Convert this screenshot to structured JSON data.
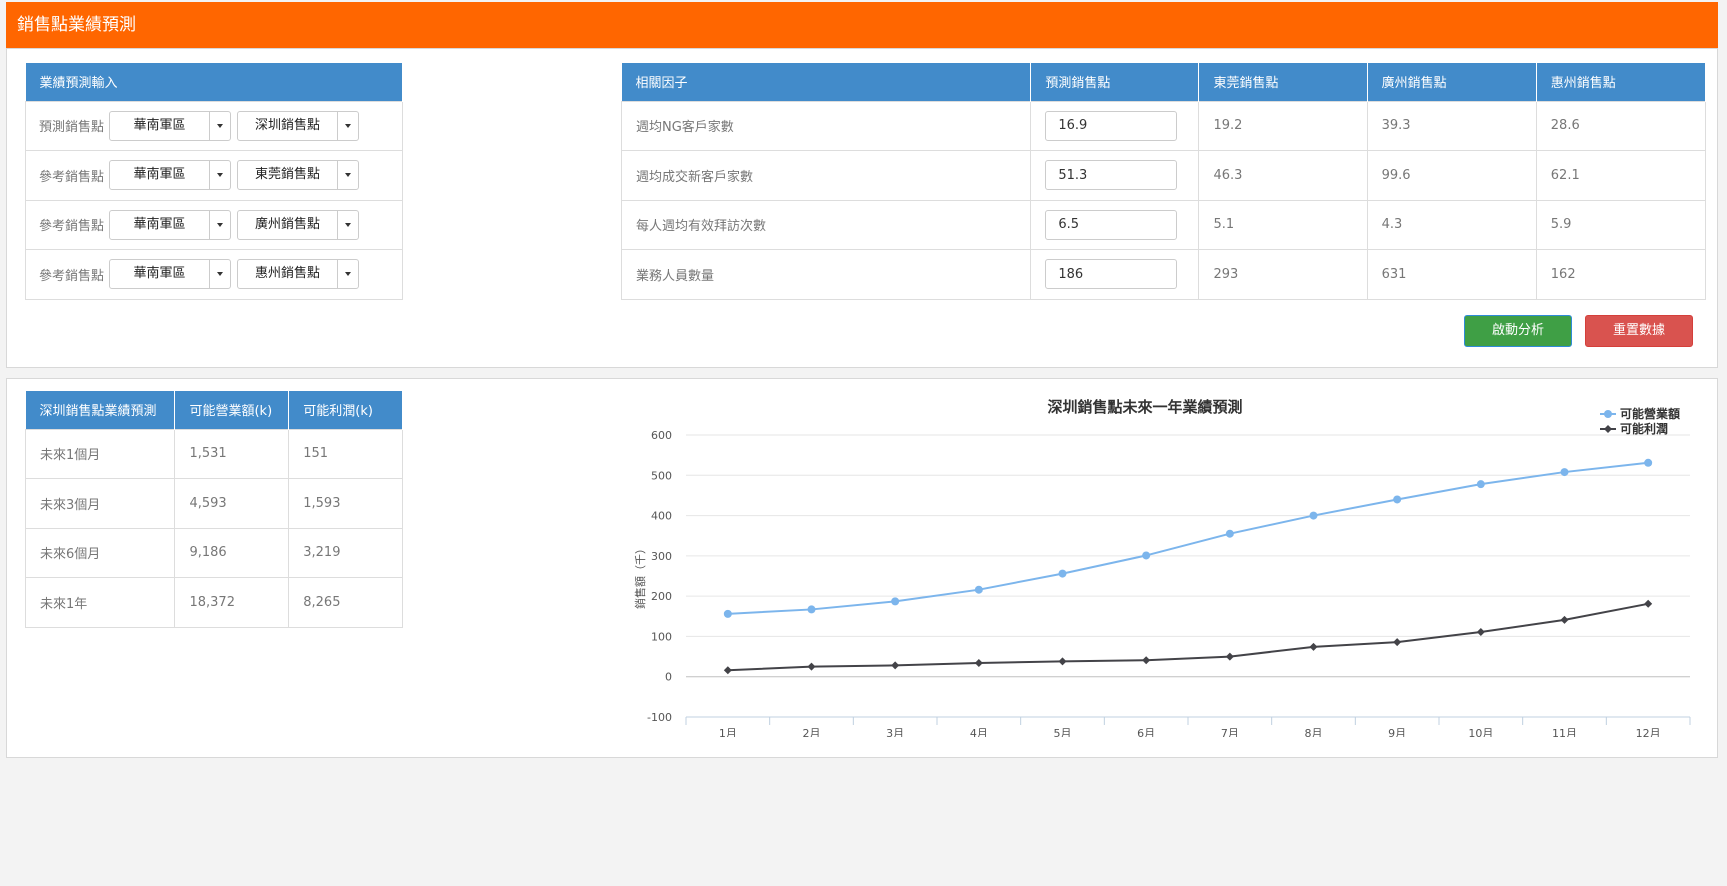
{
  "header": {
    "title": "銷售點業績預測"
  },
  "input_table": {
    "header": "業績預測輸入",
    "rows": [
      {
        "label": "預測銷售點",
        "region": "華南軍區",
        "store": "深圳銷售點"
      },
      {
        "label": "參考銷售點",
        "region": "華南軍區",
        "store": "東莞銷售點"
      },
      {
        "label": "參考銷售點",
        "region": "華南軍區",
        "store": "廣州銷售點"
      },
      {
        "label": "參考銷售點",
        "region": "華南軍區",
        "store": "惠州銷售點"
      }
    ]
  },
  "factor_table": {
    "headers": [
      "相關因子",
      "預測銷售點",
      "東莞銷售點",
      "廣州銷售點",
      "惠州銷售點"
    ],
    "rows": [
      {
        "factor": "週均NG客戶家數",
        "predict": "16.9",
        "dongguan": "19.2",
        "guangzhou": "39.3",
        "huizhou": "28.6"
      },
      {
        "factor": "週均成交新客戶家數",
        "predict": "51.3",
        "dongguan": "46.3",
        "guangzhou": "99.6",
        "huizhou": "62.1"
      },
      {
        "factor": "每人週均有效拜訪次數",
        "predict": "6.5",
        "dongguan": "5.1",
        "guangzhou": "4.3",
        "huizhou": "5.9"
      },
      {
        "factor": "業務人員數量",
        "predict": "186",
        "dongguan": "293",
        "guangzhou": "631",
        "huizhou": "162"
      }
    ]
  },
  "buttons": {
    "start": "啟動分析",
    "reset": "重置數據"
  },
  "forecast_table": {
    "headers": [
      "深圳銷售點業績預測",
      "可能營業額(k)",
      "可能利潤(k)"
    ],
    "rows": [
      {
        "period": "未來1個月",
        "revenue": "1,531",
        "profit": "151"
      },
      {
        "period": "未來3個月",
        "revenue": "4,593",
        "profit": "1,593"
      },
      {
        "period": "未來6個月",
        "revenue": "9,186",
        "profit": "3,219"
      },
      {
        "period": "未來1年",
        "revenue": "18,372",
        "profit": "8,265"
      }
    ]
  },
  "chart_data": {
    "type": "line",
    "title": "深圳銷售點未來一年業績預測",
    "ylabel": "銷售額（千）",
    "xlabel": "",
    "categories": [
      "1月",
      "2月",
      "3月",
      "4月",
      "5月",
      "6月",
      "7月",
      "8月",
      "9月",
      "10月",
      "11月",
      "12月"
    ],
    "ylim": [
      -100,
      600
    ],
    "yticks": [
      -100,
      0,
      100,
      200,
      300,
      400,
      500,
      600
    ],
    "grid": true,
    "legend": "top-right",
    "series": [
      {
        "name": "可能營業額",
        "color": "#7cb5ec",
        "marker": "circle",
        "values": [
          156,
          167,
          187,
          216,
          256,
          301,
          355,
          400,
          440,
          478,
          508,
          531
        ]
      },
      {
        "name": "可能利潤",
        "color": "#434348",
        "marker": "diamond",
        "values": [
          16,
          25,
          28,
          34,
          38,
          41,
          50,
          74,
          86,
          111,
          141,
          181
        ]
      }
    ]
  }
}
